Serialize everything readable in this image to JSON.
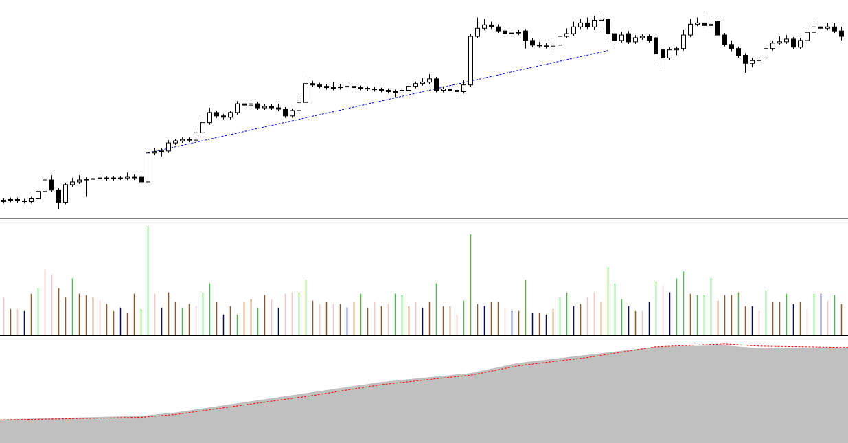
{
  "chart_data": [
    {
      "type": "candlestick",
      "xlim": [
        -0.5,
        123
      ],
      "ylim": [
        0,
        320
      ],
      "bull_color": "#ffffff",
      "bear_color": "#000000",
      "open": [
        23,
        25,
        26,
        24,
        23,
        27,
        38,
        55,
        40,
        22,
        48,
        52,
        55,
        56,
        57,
        58,
        57,
        58,
        58,
        60,
        60,
        52,
        95,
        97,
        98,
        110,
        113,
        115,
        114,
        125,
        140,
        155,
        150,
        148,
        155,
        168,
        166,
        168,
        162,
        164,
        162,
        160,
        150,
        158,
        170,
        198,
        196,
        194,
        192,
        192,
        193,
        194,
        192,
        191,
        190,
        189,
        188,
        186,
        184,
        188,
        194,
        198,
        200,
        205,
        188,
        190,
        188,
        186,
        196,
        268,
        280,
        285,
        282,
        276,
        272,
        273,
        276,
        262,
        255,
        254,
        253,
        255,
        268,
        272,
        282,
        288,
        282,
        292,
        294,
        272,
        262,
        272,
        260,
        266,
        268,
        266,
        248,
        236,
        248,
        250,
        270,
        286,
        288,
        284,
        290,
        270,
        256,
        250,
        240,
        228,
        232,
        236,
        250,
        258,
        260,
        264,
        252,
        262,
        274,
        282,
        280,
        282,
        276
      ],
      "high": [
        28,
        29,
        29,
        27,
        30,
        41,
        58,
        62,
        43,
        51,
        58,
        62,
        59,
        60,
        64,
        61,
        61,
        61,
        66,
        63,
        62,
        100,
        102,
        102,
        114,
        116,
        118,
        118,
        128,
        145,
        162,
        158,
        153,
        158,
        172,
        171,
        171,
        171,
        167,
        167,
        168,
        163,
        161,
        176,
        208,
        202,
        199,
        197,
        200,
        197,
        200,
        197,
        195,
        194,
        193,
        192,
        191,
        189,
        191,
        197,
        201,
        206,
        212,
        208,
        194,
        193,
        191,
        203,
        272,
        296,
        294,
        290,
        286,
        279,
        278,
        278,
        279,
        265,
        260,
        258,
        260,
        272,
        280,
        290,
        294,
        296,
        298,
        299,
        297,
        275,
        275,
        276,
        270,
        271,
        271,
        268,
        252,
        252,
        253,
        278,
        294,
        296,
        300,
        295,
        294,
        273,
        262,
        253,
        243,
        236,
        240,
        256,
        262,
        268,
        270,
        267,
        266,
        278,
        290,
        288,
        288,
        288,
        282
      ],
      "low": [
        20,
        22,
        21,
        20,
        20,
        24,
        35,
        37,
        12,
        19,
        45,
        49,
        30,
        53,
        54,
        54,
        54,
        55,
        55,
        55,
        49,
        49,
        92,
        90,
        95,
        107,
        110,
        111,
        111,
        122,
        137,
        147,
        145,
        145,
        152,
        163,
        163,
        159,
        159,
        159,
        157,
        147,
        147,
        155,
        167,
        193,
        191,
        189,
        188,
        189,
        190,
        189,
        188,
        187,
        186,
        185,
        183,
        178,
        181,
        185,
        191,
        195,
        197,
        185,
        185,
        185,
        182,
        183,
        193,
        265,
        277,
        279,
        273,
        269,
        269,
        270,
        250,
        252,
        251,
        250,
        248,
        252,
        265,
        269,
        279,
        279,
        278,
        280,
        258,
        250,
        259,
        257,
        257,
        263,
        259,
        228,
        222,
        233,
        240,
        247,
        267,
        283,
        281,
        281,
        267,
        253,
        246,
        236,
        214,
        222,
        228,
        233,
        247,
        256,
        257,
        249,
        249,
        259,
        271,
        277,
        277,
        273,
        262
      ],
      "close": [
        25,
        26,
        24,
        23,
        27,
        38,
        55,
        40,
        22,
        48,
        52,
        55,
        56,
        57,
        58,
        57,
        58,
        58,
        60,
        58,
        52,
        95,
        97,
        98,
        110,
        113,
        115,
        114,
        125,
        140,
        155,
        150,
        148,
        155,
        168,
        166,
        168,
        162,
        164,
        162,
        160,
        150,
        158,
        170,
        198,
        196,
        194,
        192,
        192,
        193,
        194,
        192,
        191,
        190,
        189,
        188,
        186,
        184,
        188,
        194,
        198,
        200,
        205,
        188,
        190,
        188,
        186,
        196,
        268,
        280,
        285,
        282,
        276,
        272,
        273,
        274,
        262,
        255,
        254,
        253,
        255,
        268,
        272,
        282,
        288,
        282,
        292,
        294,
        272,
        262,
        270,
        260,
        266,
        268,
        262,
        242,
        236,
        248,
        250,
        270,
        286,
        288,
        284,
        286,
        270,
        256,
        250,
        240,
        228,
        232,
        236,
        250,
        258,
        260,
        264,
        252,
        262,
        274,
        282,
        280,
        282,
        276,
        268
      ],
      "trendline": {
        "color": "#0000cc",
        "x": [
          21,
          88
        ],
        "values": [
          95,
          247
        ]
      }
    },
    {
      "type": "bar",
      "xlim": [
        -0.5,
        123
      ],
      "ylim": [
        0,
        165
      ],
      "values": [
        55,
        38,
        38,
        35,
        60,
        68,
        95,
        88,
        68,
        55,
        82,
        60,
        58,
        55,
        50,
        45,
        35,
        40,
        32,
        60,
        38,
        158,
        60,
        40,
        62,
        48,
        40,
        45,
        42,
        62,
        75,
        48,
        30,
        42,
        30,
        48,
        52,
        40,
        58,
        52,
        40,
        60,
        62,
        62,
        80,
        50,
        45,
        48,
        45,
        45,
        40,
        48,
        60,
        40,
        48,
        42,
        45,
        60,
        58,
        42,
        48,
        40,
        48,
        75,
        42,
        42,
        30,
        50,
        146,
        45,
        42,
        48,
        48,
        40,
        35,
        35,
        80,
        32,
        32,
        30,
        38,
        55,
        62,
        42,
        45,
        55,
        62,
        48,
        98,
        75,
        52,
        42,
        35,
        35,
        48,
        78,
        72,
        62,
        82,
        92,
        60,
        58,
        58,
        82,
        50,
        58,
        58,
        62,
        42,
        42,
        35,
        65,
        48,
        48,
        60,
        45,
        48,
        38,
        60,
        60,
        50,
        58,
        45
      ],
      "colors": [
        "#f4c2c2",
        "#8b5a2b",
        "#f4c2c2",
        "#000080",
        "#8b5a2b",
        "#32cd32",
        "#f4c2c2",
        "#f4c2c2",
        "#8b5a2b",
        "#8b5a2b",
        "#32cd32",
        "#8b5a2b",
        "#8b5a2b",
        "#8b5a2b",
        "#f4c2c2",
        "#8b5a2b",
        "#8b5a2b",
        "#000080",
        "#8b5a2b",
        "#8b5a2b",
        "#32cd32",
        "#32cd32",
        "#f4c2c2",
        "#000080",
        "#8b5a2b",
        "#8b5a2b",
        "#32cd32",
        "#8b5a2b",
        "#f4c2c2",
        "#32cd32",
        "#32cd32",
        "#8b5a2b",
        "#000080",
        "#8b5a2b",
        "#32cd32",
        "#8b5a2b",
        "#8b5a2b",
        "#32cd32",
        "#8b5a2b",
        "#f4c2c2",
        "#000080",
        "#f4c2c2",
        "#f4c2c2",
        "#32cd32",
        "#32cd32",
        "#8b5a2b",
        "#f4c2c2",
        "#8b5a2b",
        "#f4c2c2",
        "#8b5a2b",
        "#000080",
        "#8b5a2b",
        "#32cd32",
        "#8b5a2b",
        "#f4c2c2",
        "#8b5a2b",
        "#f4c2c2",
        "#32cd32",
        "#32cd32",
        "#8b5a2b",
        "#f4c2c2",
        "#000080",
        "#8b5a2b",
        "#32cd32",
        "#8b5a2b",
        "#8b5a2b",
        "#f4c2c2",
        "#32cd32",
        "#32cd32",
        "#8b5a2b",
        "#000080",
        "#8b5a2b",
        "#8b5a2b",
        "#f4c2c2",
        "#000080",
        "#8b5a2b",
        "#32cd32",
        "#000080",
        "#8b5a2b",
        "#000080",
        "#8b5a2b",
        "#32cd32",
        "#32cd32",
        "#000080",
        "#8b5a2b",
        "#f4c2c2",
        "#f4c2c2",
        "#8b5a2b",
        "#32cd32",
        "#32cd32",
        "#32cd32",
        "#000080",
        "#8b5a2b",
        "#f4c2c2",
        "#000080",
        "#32cd32",
        "#f4c2c2",
        "#000080",
        "#32cd32",
        "#32cd32",
        "#8b5a2b",
        "#32cd32",
        "#32cd32",
        "#32cd32",
        "#8b5a2b",
        "#8b5a2b",
        "#8b5a2b",
        "#32cd32",
        "#8b5a2b",
        "#000080",
        "#f4c2c2",
        "#32cd32",
        "#8b5a2b",
        "#8b5a2b",
        "#32cd32",
        "#000080",
        "#8b5a2b",
        "#f4c2c2",
        "#32cd32",
        "#000080",
        "#f4c2c2",
        "#32cd32",
        "#8b5a2b"
      ]
    },
    {
      "type": "area",
      "xlim": [
        -0.5,
        123
      ],
      "ylim": [
        0,
        155
      ],
      "x": [
        -0.5,
        20,
        25,
        35,
        45,
        55,
        65,
        68,
        75,
        85,
        95,
        105,
        110,
        123
      ],
      "series": [
        {
          "type": "area",
          "color": "#c0c0c0",
          "values": [
            35,
            40,
            45,
            60,
            75,
            90,
            100,
            103,
            118,
            130,
            142,
            144,
            140,
            140
          ]
        },
        {
          "type": "line",
          "color": "#ff0000",
          "values": [
            34,
            38,
            42,
            56,
            70,
            86,
            97,
            100,
            114,
            126,
            142,
            146,
            143,
            141
          ]
        }
      ]
    }
  ]
}
